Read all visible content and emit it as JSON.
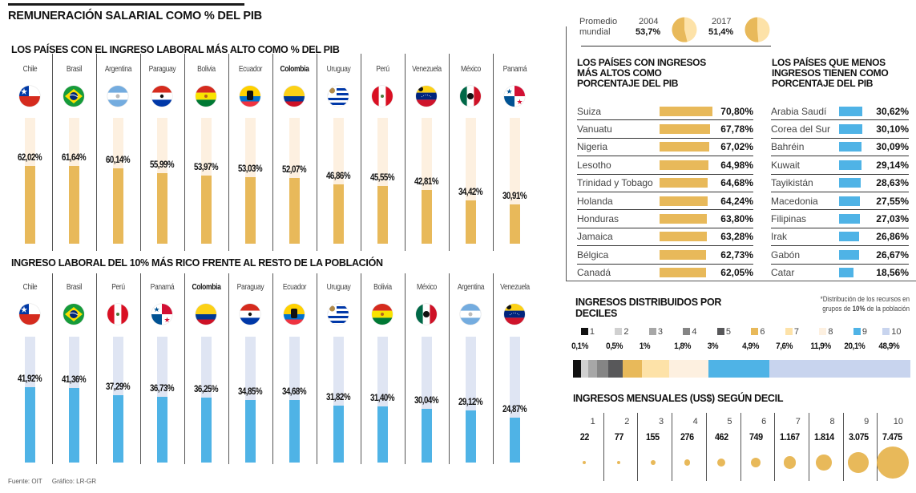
{
  "title": "REMUNERACIÓN SALARIAL COMO % DEL PIB",
  "footer": {
    "source": "Fuente: OIT",
    "graphic": "Gráfico: LR-GR"
  },
  "colors": {
    "gold": "#e8b95a",
    "gold_light": "#fdf0e0",
    "blue": "#4fb3e6",
    "blue_light": "#dfe5f3"
  },
  "chart_data": [
    {
      "type": "bar",
      "title": "LOS PAÍSES CON EL INGRESO LABORAL MÁS ALTO COMO % DEL PIB",
      "categories": [
        "Chile",
        "Brasil",
        "Argentina",
        "Paraguay",
        "Bolivia",
        "Ecuador",
        "Colombia",
        "Uruguay",
        "Perú",
        "Venezuela",
        "México",
        "Panamá"
      ],
      "values": [
        62.02,
        61.64,
        60.14,
        55.99,
        53.97,
        53.03,
        52.07,
        46.86,
        45.55,
        42.81,
        34.42,
        30.91
      ],
      "labels": [
        "62,02%",
        "61,64%",
        "60,14%",
        "55,99%",
        "53,97%",
        "53,03%",
        "52,07%",
        "46,86%",
        "45,55%",
        "42,81%",
        "34,42%",
        "30,91%"
      ],
      "highlight": "Colombia",
      "ylim": [
        0,
        100
      ],
      "xlabel": "",
      "ylabel": ""
    },
    {
      "type": "bar",
      "title": "INGRESO LABORAL DEL 10% MÁS RICO FRENTE AL RESTO DE LA POBLACIÓN",
      "categories": [
        "Chile",
        "Brasil",
        "Perú",
        "Panamá",
        "Colombia",
        "Paraguay",
        "Ecuador",
        "Uruguay",
        "Bolivia",
        "México",
        "Argentina",
        "Venezuela"
      ],
      "values": [
        41.92,
        41.36,
        37.29,
        36.73,
        36.25,
        34.85,
        34.68,
        31.82,
        31.4,
        30.04,
        29.12,
        24.87
      ],
      "labels": [
        "41,92%",
        "41,36%",
        "37,29%",
        "36,73%",
        "36,25%",
        "34,85%",
        "34,68%",
        "31,82%",
        "31,40%",
        "30,04%",
        "29,12%",
        "24,87%"
      ],
      "highlight": "Colombia",
      "ylim": [
        0,
        70
      ],
      "xlabel": "",
      "ylabel": ""
    },
    {
      "type": "pie",
      "title": "Promedio mundial",
      "series": [
        {
          "name": "2004",
          "value": 53.7,
          "label": "53,7%"
        },
        {
          "name": "2017",
          "value": 51.4,
          "label": "51,4%"
        }
      ]
    },
    {
      "type": "bar",
      "orientation": "horizontal",
      "title": "LOS PAÍSES CON INGRESOS MÁS ALTOS COMO PORCENTAJE DEL PIB",
      "categories": [
        "Suiza",
        "Vanuatu",
        "Nigeria",
        "Lesotho",
        "Trinidad y Tobago",
        "Holanda",
        "Honduras",
        "Jamaica",
        "Bélgica",
        "Canadá"
      ],
      "values": [
        70.8,
        67.78,
        67.02,
        64.98,
        64.68,
        64.24,
        63.8,
        63.28,
        62.73,
        62.05
      ],
      "labels": [
        "70,80%",
        "67,78%",
        "67,02%",
        "64,98%",
        "64,68%",
        "64,24%",
        "63,80%",
        "63,28%",
        "62,73%",
        "62,05%"
      ]
    },
    {
      "type": "bar",
      "orientation": "horizontal",
      "title": "LOS PAÍSES QUE MENOS INGRESOS TIENEN COMO PORCENTAJE DEL PIB",
      "categories": [
        "Arabia Saudí",
        "Corea del Sur",
        "Bahréin",
        "Kuwait",
        "Tayikistán",
        "Macedonia",
        "Filipinas",
        "Irak",
        "Gabón",
        "Catar"
      ],
      "values": [
        30.62,
        30.1,
        30.09,
        29.14,
        28.63,
        27.55,
        27.03,
        26.86,
        26.67,
        18.56
      ],
      "labels": [
        "30,62%",
        "30,10%",
        "30,09%",
        "29,14%",
        "28,63%",
        "27,55%",
        "27,03%",
        "26,86%",
        "26,67%",
        "18,56%"
      ]
    },
    {
      "type": "bar",
      "stacked": true,
      "title": "INGRESOS DISTRIBUIDOS POR DECILES",
      "note_pre": "*Distribución de los recursos en",
      "note_mid": "grupos de ",
      "note_bold": "10%",
      "note_post": " de la población",
      "categories": [
        "1",
        "2",
        "3",
        "4",
        "5",
        "6",
        "7",
        "8",
        "9",
        "10"
      ],
      "values": [
        0.1,
        0.5,
        1,
        1.8,
        3,
        4.9,
        7.6,
        11.9,
        20.1,
        48.9
      ],
      "labels": [
        "0,1%",
        "0,5%",
        "1%",
        "1,8%",
        "3%",
        "4,9%",
        "7,6%",
        "11,9%",
        "20,1%",
        "48,9%"
      ],
      "colors": [
        "#111111",
        "#d0d0d0",
        "#a7a7a7",
        "#858585",
        "#58585a",
        "#e8b95a",
        "#fde2a8",
        "#fdf0e0",
        "#4fb3e6",
        "#c8d4ee"
      ]
    },
    {
      "type": "scatter",
      "title": "INGRESOS MENSUALES (US$) SEGÚN DECIL",
      "categories": [
        "1",
        "2",
        "3",
        "4",
        "5",
        "6",
        "7",
        "8",
        "9",
        "10"
      ],
      "values": [
        22,
        77,
        155,
        276,
        462,
        749,
        1167,
        1814,
        3075,
        7475
      ],
      "labels": [
        "22",
        "77",
        "155",
        "276",
        "462",
        "749",
        "1.167",
        "1.814",
        "3.075",
        "7.475"
      ]
    }
  ]
}
